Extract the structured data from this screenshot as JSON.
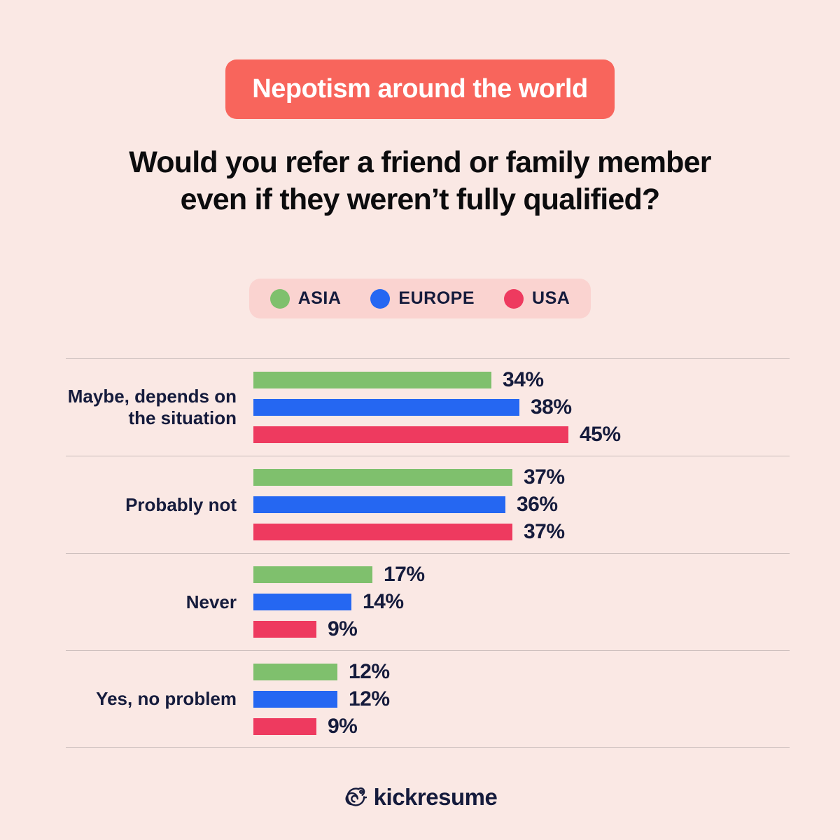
{
  "badge": {
    "label": "Nepotism around the world"
  },
  "title": {
    "line1": "Would you refer a friend or family member",
    "line2": "even if they weren’t fully qualified?"
  },
  "legend": {
    "items": [
      {
        "label": "ASIA",
        "color": "#7FC06D"
      },
      {
        "label": "EUROPE",
        "color": "#2567F2"
      },
      {
        "label": "USA",
        "color": "#EE3A5F"
      }
    ]
  },
  "chart_data": {
    "type": "bar",
    "orientation": "horizontal",
    "categories": [
      "Maybe, depends on the situation",
      "Probably not",
      "Never",
      "Yes, no problem"
    ],
    "series": [
      {
        "name": "ASIA",
        "color": "#7FC06D",
        "values": [
          34,
          37,
          17,
          12
        ]
      },
      {
        "name": "EUROPE",
        "color": "#2567F2",
        "values": [
          38,
          36,
          14,
          12
        ]
      },
      {
        "name": "USA",
        "color": "#EE3A5F",
        "values": [
          45,
          37,
          9,
          9
        ]
      }
    ],
    "value_suffix": "%",
    "xlim": [
      0,
      50
    ],
    "grid": "row-dividers-only",
    "legend_position": "top-center"
  },
  "colors": {
    "background": "#FAE8E4",
    "badge_bg": "#F8655C",
    "badge_text": "#FFFFFF",
    "legend_bg": "#FAD3D0",
    "text_navy": "#151B3C",
    "title_text": "#0C0C0E",
    "divider": "#C9BCBA"
  },
  "footer": {
    "brand": "kickresume"
  }
}
